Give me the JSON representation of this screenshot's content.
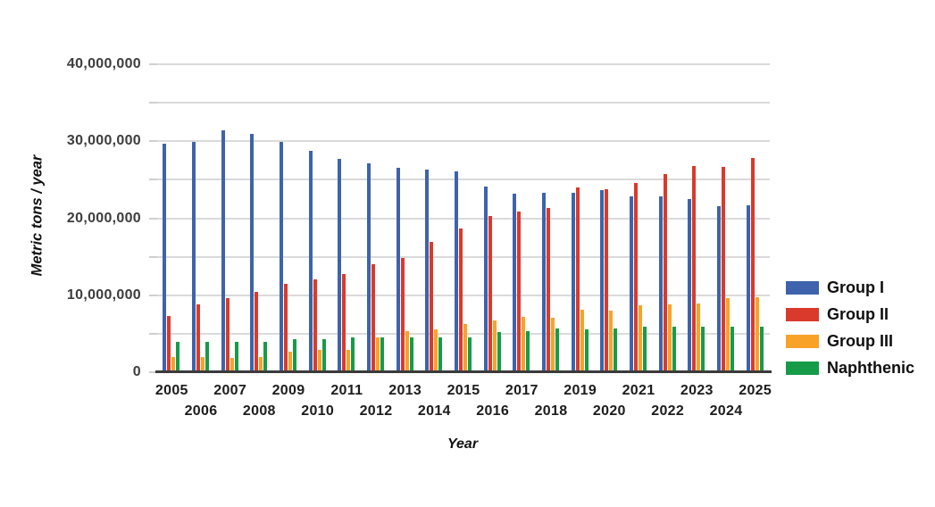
{
  "chart_data": {
    "type": "bar",
    "title": "",
    "xlabel": "Year",
    "ylabel": "Metric tons / year",
    "grid": true,
    "legend_position": "right",
    "categories": [
      2005,
      2006,
      2007,
      2008,
      2009,
      2010,
      2011,
      2012,
      2013,
      2014,
      2015,
      2016,
      2017,
      2018,
      2019,
      2020,
      2021,
      2022,
      2023,
      2024,
      2025
    ],
    "series": [
      {
        "name": "Group I",
        "color": "#3E63AC",
        "values": [
          29700000,
          29900000,
          31400000,
          31000000,
          29900000,
          28700000,
          27700000,
          27100000,
          26600000,
          26300000,
          26100000,
          24100000,
          23200000,
          23300000,
          23300000,
          23600000,
          22900000,
          22800000,
          22500000,
          21600000,
          21700000
        ]
      },
      {
        "name": "Group II",
        "color": "#DA3A2B",
        "values": [
          7300000,
          8800000,
          9600000,
          10400000,
          11500000,
          12100000,
          12800000,
          14000000,
          14900000,
          16900000,
          18700000,
          20300000,
          20900000,
          21300000,
          24000000,
          23800000,
          24600000,
          25700000,
          26800000,
          26700000,
          27800000
        ]
      },
      {
        "name": "Group III",
        "color": "#F9A228",
        "values": [
          2000000,
          2000000,
          1900000,
          2000000,
          2700000,
          2900000,
          2900000,
          4500000,
          5300000,
          5600000,
          6300000,
          6700000,
          7200000,
          7100000,
          8100000,
          8000000,
          8700000,
          8800000,
          8900000,
          9600000,
          9700000
        ]
      },
      {
        "name": "Naphthenic",
        "color": "#169C49",
        "values": [
          4000000,
          4000000,
          4000000,
          4000000,
          4300000,
          4300000,
          4500000,
          4500000,
          4500000,
          4500000,
          4500000,
          5200000,
          5300000,
          5700000,
          5600000,
          5700000,
          5900000,
          5900000,
          5900000,
          5900000,
          5900000
        ]
      }
    ],
    "y_axis": {
      "min": 0,
      "max": 40000000,
      "major_tick_interval": 10000000,
      "minor_tick_interval": 5000000,
      "tick_labels": [
        "0",
        "10,000,000",
        "20,000,000",
        "30,000,000",
        "40,000,000"
      ]
    },
    "style": {
      "gridline_color": "#dadada",
      "axis_line_color": "#3b3b3b",
      "y_label_color": "#3d3d3d",
      "x_label_color": "#1c1c1c",
      "tick_color": "#cfcfcf"
    }
  }
}
